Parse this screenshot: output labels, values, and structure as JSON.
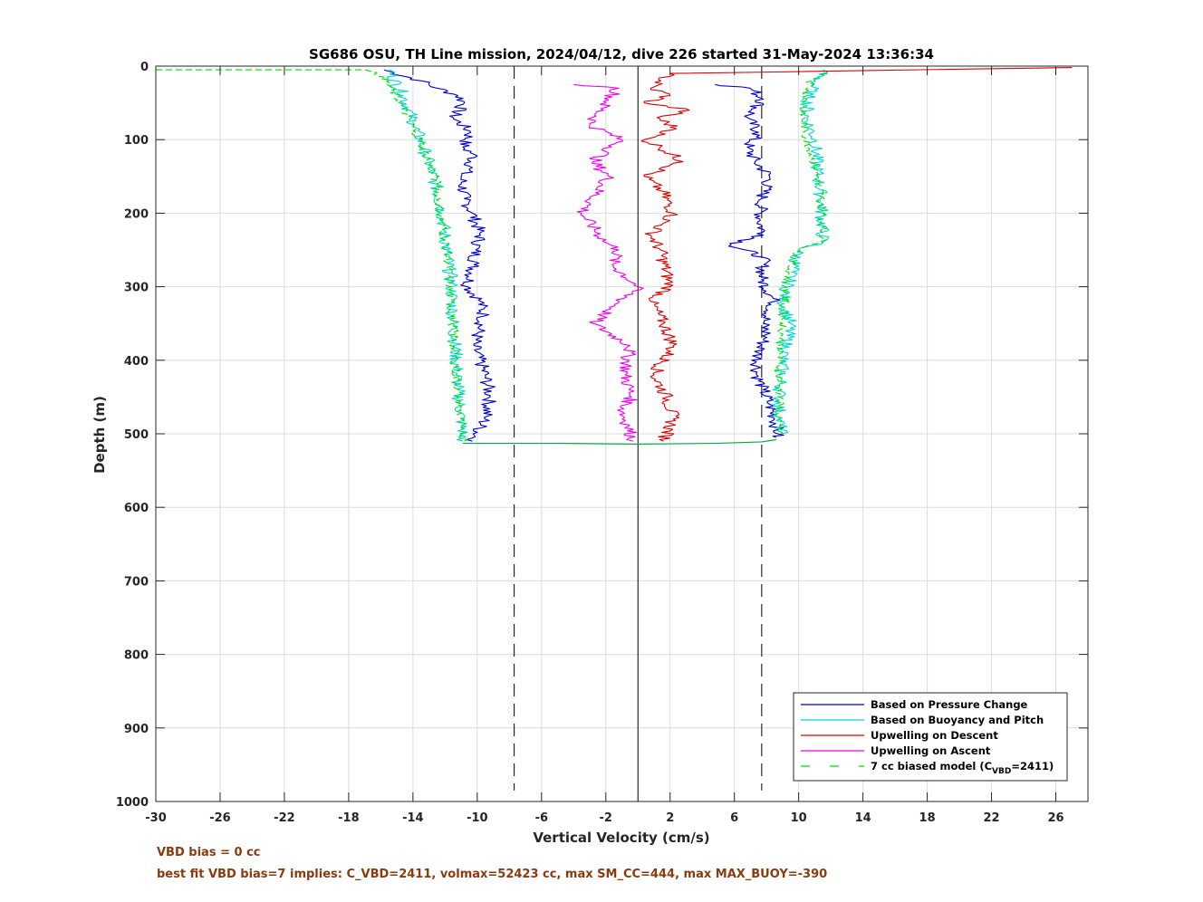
{
  "chart_data": {
    "type": "line",
    "title": "SG686 OSU, TH Line mission, 2024/04/12, dive 226 started 31-May-2024 13:36:34",
    "xlabel": "Vertical Velocity (cm/s)",
    "ylabel": "Depth (m)",
    "xlim": [
      -30,
      28
    ],
    "ylim": [
      0,
      1000
    ],
    "y_reversed": true,
    "grid": true,
    "x_ticks": [
      -30,
      -26,
      -22,
      -18,
      -14,
      -10,
      -6,
      -2,
      2,
      6,
      10,
      14,
      18,
      22,
      26
    ],
    "y_ticks": [
      0,
      100,
      200,
      300,
      400,
      500,
      600,
      700,
      800,
      900,
      1000
    ],
    "legend_position": "bottom-right",
    "reference_lines": {
      "zero_line_x": 0,
      "dashed_lines_x": [
        -7.7,
        7.7
      ],
      "dashed_y_range": [
        0,
        985
      ]
    },
    "series": [
      {
        "name": "Based on Pressure Change",
        "color": "#0000cc",
        "style": "solid",
        "segments": [
          {
            "x": [
              -15.8,
              -13.5,
              -12.5,
              -11.2,
              -10.8,
              -11.5,
              -10.4,
              -10.9,
              -10.2,
              -10.5,
              -11.0,
              -10.8,
              -10.3,
              -9.8,
              -10.1,
              -10.2,
              -10.6,
              -9.8,
              -9.6,
              -10.2,
              -9.5,
              -9.2,
              -9.5,
              -10.3
            ],
            "y": [
              5,
              20,
              30,
              40,
              50,
              70,
              90,
              110,
              120,
              140,
              150,
              180,
              200,
              230,
              250,
              270,
              300,
              320,
              340,
              380,
              420,
              450,
              480,
              510
            ]
          },
          {
            "x": [
              4.8,
              7.0,
              7.8,
              6.8,
              7.5,
              6.8,
              7.3,
              8.2,
              7.7,
              7.6,
              7.8,
              5.8,
              7.8,
              7.7,
              8.5,
              7.8,
              8.0,
              7.5,
              7.4,
              7.8,
              8.2,
              8.5,
              8.7,
              8.6
            ],
            "y": [
              25,
              30,
              45,
              70,
              90,
              110,
              130,
              150,
              180,
              210,
              230,
              243,
              260,
              290,
              320,
              350,
              365,
              390,
              420,
              440,
              460,
              480,
              500,
              505
            ]
          }
        ]
      },
      {
        "name": "Based on Buoyancy and Pitch",
        "color": "#00d8d8",
        "style": "solid",
        "segments": [
          {
            "x": [
              -15.5,
              -14.6,
              -13.9,
              -13.2,
              -12.6,
              -12.2,
              -11.9,
              -11.6,
              -11.5,
              -11.3,
              -11.2,
              -11.0,
              -10.9,
              -10.9
            ],
            "y": [
              5,
              40,
              80,
              120,
              160,
              200,
              250,
              300,
              350,
              400,
              440,
              480,
              500,
              510
            ]
          },
          {
            "x": [
              11.5,
              10.6,
              10.5,
              11.0,
              11.2,
              11.4,
              11.5,
              10.0,
              9.6,
              9.0,
              9.5,
              9.0,
              8.8,
              8.8,
              8.9
            ],
            "y": [
              5,
              40,
              70,
              100,
              150,
              180,
              240,
              250,
              280,
              320,
              350,
              400,
              450,
              480,
              500
            ]
          }
        ]
      },
      {
        "name": "Upwelling on Descent",
        "color": "#dd0000",
        "style": "solid",
        "segments": [
          {
            "x": [
              27.0,
              2.0,
              0.8,
              2.0,
              0.4,
              3.2,
              1.2,
              2.4,
              0.4,
              1.4,
              2.8,
              0.4,
              1.5,
              2.2,
              0.8,
              1.4,
              2.0,
              0.8,
              1.6,
              2.2,
              1.0,
              1.8,
              2.2,
              1.6
            ],
            "y": [
              2,
              10,
              30,
              40,
              50,
              60,
              70,
              85,
              100,
              110,
              130,
              150,
              170,
              200,
              230,
              250,
              300,
              320,
              350,
              380,
              420,
              450,
              480,
              510
            ]
          }
        ]
      },
      {
        "name": "Upwelling on Ascent",
        "color": "#ee00ee",
        "style": "solid",
        "segments": [
          {
            "x": [
              -4.0,
              -1.2,
              -2.0,
              -3.0,
              -1.0,
              -2.8,
              -1.8,
              -3.5,
              -2.0,
              -1.2,
              -1.6,
              0.0,
              -2.8,
              -0.5,
              -0.8,
              -0.4,
              -1.0,
              -0.6,
              -0.3
            ],
            "y": [
              25,
              30,
              50,
              80,
              100,
              130,
              150,
              200,
              240,
              250,
              270,
              300,
              350,
              380,
              420,
              450,
              470,
              490,
              510
            ]
          }
        ]
      },
      {
        "name": "7 cc biased model",
        "legend_label": "7 cc biased model (C",
        "legend_subscript": "VBD",
        "legend_suffix": "=2411)",
        "color": "#00dd00",
        "style": "dashed",
        "segments": [
          {
            "x": [
              -30.0,
              -17.0,
              -15.8,
              -14.8,
              -13.8,
              -13.0,
              -12.5,
              -12.3,
              -11.9,
              -11.7,
              -11.5,
              -11.4,
              -11.2,
              -11.0,
              -10.8
            ],
            "y": [
              5,
              5,
              15,
              50,
              90,
              130,
              160,
              200,
              250,
              300,
              350,
              400,
              450,
              490,
              510
            ]
          },
          {
            "x": [
              11.8,
              10.8,
              10.2,
              10.5,
              11.2,
              11.5,
              11.5,
              10.0,
              9.5,
              9.2,
              9.0,
              8.8,
              8.8,
              8.7
            ],
            "y": [
              10,
              20,
              60,
              100,
              150,
              200,
              240,
              250,
              270,
              300,
              350,
              400,
              450,
              500
            ]
          }
        ]
      }
    ],
    "bottom_connector": {
      "x": [
        -10.9,
        -5.0,
        0.0,
        4.8,
        7.7,
        8.6
      ],
      "y": [
        513,
        513,
        514,
        513,
        511,
        508
      ],
      "color": "#00aa44"
    }
  },
  "notes": {
    "vbd_bias": "VBD bias = 0 cc",
    "best_fit": "best fit VBD bias=7 implies: C_VBD=2411, volmax=52423 cc, max SM_CC=444, max MAX_BUOY=-390"
  }
}
